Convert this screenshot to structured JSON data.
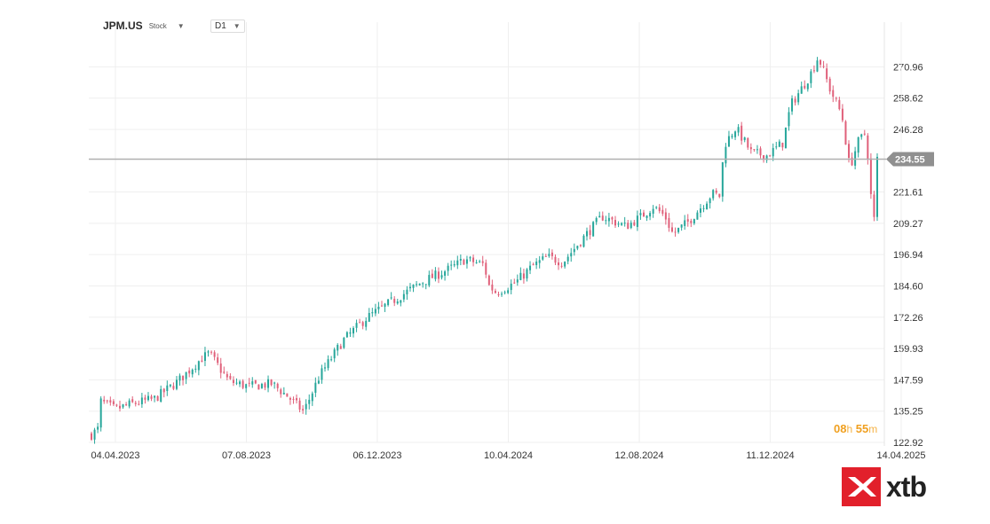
{
  "toolbar": {
    "symbol": "JPM.US",
    "symbol_type": "Stock",
    "timeframe": "D1"
  },
  "countdown": {
    "hours": "08",
    "hours_unit": "h",
    "minutes": "55",
    "minutes_unit": "m"
  },
  "brand": {
    "name": "xtb"
  },
  "colors": {
    "up": "#26a69a",
    "down": "#e0607a",
    "grid": "#efefef",
    "price_line": "#b0b0b0",
    "price_tag": "#909090"
  },
  "chart_data": {
    "type": "candlestick",
    "title": "JPM.US",
    "timeframe": "D1",
    "current_price": 234.55,
    "ylim": [
      122.92,
      283.3
    ],
    "y_ticks": [
      "270.96",
      "258.62",
      "246.28",
      "234.55",
      "221.61",
      "209.27",
      "196.94",
      "184.60",
      "172.26",
      "159.93",
      "147.59",
      "135.25",
      "122.92"
    ],
    "y_tick_values": [
      270.96,
      258.62,
      246.28,
      234.55,
      221.61,
      209.27,
      196.94,
      184.6,
      172.26,
      159.93,
      147.59,
      135.25,
      122.92
    ],
    "x_ticks": [
      "04.04.2023",
      "07.08.2023",
      "06.12.2023",
      "10.04.2024",
      "12.08.2024",
      "11.12.2024",
      "14.04.2025"
    ],
    "x_tick_positions": [
      0,
      0.1667,
      0.3333,
      0.5,
      0.6667,
      0.8333,
      1.0
    ],
    "close_series_anchors": [
      [
        0.0,
        126
      ],
      [
        0.008,
        128
      ],
      [
        0.012,
        139
      ],
      [
        0.03,
        136
      ],
      [
        0.05,
        138
      ],
      [
        0.08,
        140
      ],
      [
        0.11,
        147
      ],
      [
        0.14,
        156
      ],
      [
        0.15,
        158
      ],
      [
        0.175,
        147
      ],
      [
        0.2,
        145
      ],
      [
        0.23,
        146
      ],
      [
        0.25,
        141
      ],
      [
        0.27,
        135
      ],
      [
        0.29,
        149
      ],
      [
        0.32,
        163
      ],
      [
        0.35,
        172
      ],
      [
        0.38,
        178
      ],
      [
        0.42,
        186
      ],
      [
        0.46,
        192
      ],
      [
        0.475,
        195
      ],
      [
        0.5,
        193
      ],
      [
        0.505,
        185
      ],
      [
        0.515,
        182
      ],
      [
        0.54,
        186
      ],
      [
        0.56,
        192
      ],
      [
        0.58,
        196
      ],
      [
        0.6,
        194
      ],
      [
        0.63,
        205
      ],
      [
        0.65,
        212
      ],
      [
        0.68,
        208
      ],
      [
        0.7,
        212
      ],
      [
        0.715,
        216
      ],
      [
        0.73,
        212
      ],
      [
        0.74,
        205
      ],
      [
        0.76,
        210
      ],
      [
        0.79,
        221
      ],
      [
        0.8,
        220
      ],
      [
        0.805,
        240
      ],
      [
        0.82,
        247
      ],
      [
        0.84,
        237
      ],
      [
        0.86,
        236
      ],
      [
        0.88,
        241
      ],
      [
        0.89,
        256
      ],
      [
        0.905,
        263
      ],
      [
        0.915,
        268
      ],
      [
        0.925,
        275
      ],
      [
        0.94,
        262
      ],
      [
        0.955,
        252
      ],
      [
        0.965,
        231
      ],
      [
        0.975,
        241
      ],
      [
        0.985,
        245
      ],
      [
        0.99,
        230
      ],
      [
        0.995,
        205
      ],
      [
        1.0,
        234.55
      ]
    ]
  }
}
